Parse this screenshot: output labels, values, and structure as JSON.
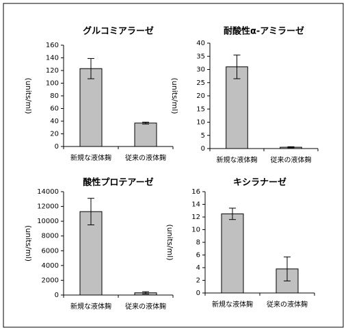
{
  "chart_data": [
    {
      "type": "bar",
      "title": "グルコミアラーゼ",
      "ylabel": "(units/ml)",
      "categories": [
        "新規な液体麹",
        "従来の液体麹"
      ],
      "values": [
        123,
        37
      ],
      "errors": [
        16,
        1.5
      ],
      "color": "#c0c0c0",
      "ylim": [
        0,
        160
      ],
      "yticks": [
        0,
        20,
        40,
        60,
        80,
        100,
        120,
        140,
        160
      ]
    },
    {
      "type": "bar",
      "title": "耐酸性α-アミラーゼ",
      "ylabel": "(units/ml)",
      "categories": [
        "新規な液体麹",
        "従来の液体麹"
      ],
      "values": [
        31,
        0.5
      ],
      "errors": [
        4.5,
        0.2
      ],
      "color": "#c0c0c0",
      "ylim": [
        0,
        40
      ],
      "yticks": [
        0,
        5,
        10,
        15,
        20,
        25,
        30,
        35,
        40
      ]
    },
    {
      "type": "bar",
      "title": "酸性プロテアーゼ",
      "ylabel": "(units/ml)",
      "categories": [
        "新規な液体麹",
        "従来の液体麹"
      ],
      "values": [
        11300,
        300
      ],
      "errors": [
        1800,
        150
      ],
      "color": "#c0c0c0",
      "ylim": [
        0,
        14000
      ],
      "yticks": [
        0,
        2000,
        4000,
        6000,
        8000,
        10000,
        12000,
        14000
      ]
    },
    {
      "type": "bar",
      "title": "キシラナーゼ",
      "ylabel": "(units/ml)",
      "categories": [
        "新規な液体麹",
        "従来の液体麹"
      ],
      "values": [
        12.5,
        3.8
      ],
      "errors": [
        0.9,
        1.9
      ],
      "color": "#c0c0c0",
      "ylim": [
        0,
        16
      ],
      "yticks": [
        0,
        2,
        4,
        6,
        8,
        10,
        12,
        14,
        16
      ]
    }
  ]
}
